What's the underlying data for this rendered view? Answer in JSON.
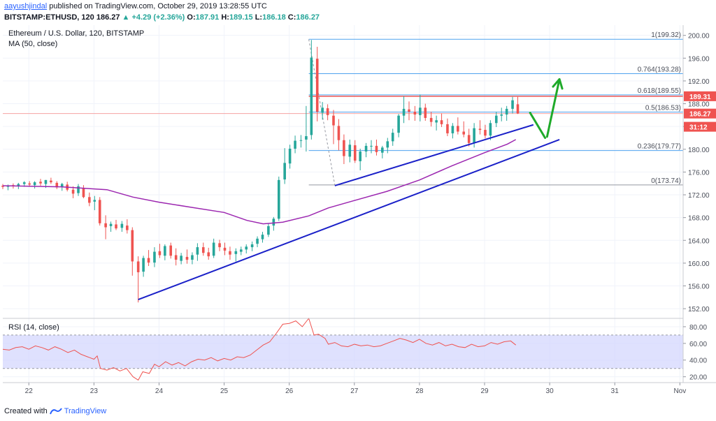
{
  "header": {
    "author": "aayushjindal",
    "published_text": "published on TradingView.com, October 29, 2019 13:28:55 UTC",
    "symbol": "BITSTAMP:ETHUSD, 120",
    "last": "186.27",
    "change": "+4.29 (+2.36%)",
    "o_label": "O:",
    "o_value": "187.91",
    "h_label": "H:",
    "h_value": "189.15",
    "l_label": "L:",
    "l_value": "186.18",
    "c_label": "C:",
    "c_value": "186.27"
  },
  "footer": {
    "created_with": "Created with",
    "brand": "TradingView"
  },
  "colors": {
    "up": "#26a69a",
    "down": "#ef5350",
    "ma": "#9c27b0",
    "trendline": "#1a20c8",
    "arrow": "#1faa2a",
    "fib": "#4fa3ef",
    "rsi": "#ef5350",
    "rsi_band": "#d1d4fd"
  },
  "chart_data": [
    {
      "type": "candlestick",
      "title": "Ethereum / U.S. Dollar, 120, BITSTAMP",
      "indicator": "MA (50, close)",
      "x_ticks": [
        "22",
        "23",
        "24",
        "25",
        "26",
        "27",
        "28",
        "29",
        "30",
        "31",
        "Nov"
      ],
      "y_ticks": [
        "152.00",
        "156.00",
        "160.00",
        "164.00",
        "168.00",
        "172.00",
        "176.00",
        "180.00",
        "184.00",
        "188.00",
        "192.00",
        "196.00",
        "200.00"
      ],
      "ylim": [
        150.3,
        201.8
      ],
      "xlim": [
        21.6,
        32.05
      ],
      "price_labels": [
        {
          "text": "189.31",
          "value": 189.31,
          "color": "#ef5350"
        },
        {
          "text": "186.27",
          "value": 186.27,
          "color": "#ef5350"
        },
        {
          "text": "31:12",
          "value": 183.95,
          "color": "#ef5350"
        }
      ],
      "candles": [
        [
          21.6,
          173.6,
          173.9,
          173.0,
          173.4
        ],
        [
          21.68,
          173.4,
          173.8,
          172.8,
          173.6
        ],
        [
          21.76,
          173.7,
          174.0,
          173.1,
          173.5
        ],
        [
          21.84,
          173.5,
          174.1,
          173.0,
          173.9
        ],
        [
          21.93,
          173.9,
          174.4,
          173.4,
          174.2
        ],
        [
          22.01,
          174.0,
          174.4,
          173.4,
          173.8
        ],
        [
          22.09,
          173.7,
          174.4,
          173.1,
          174.2
        ],
        [
          22.18,
          174.3,
          174.8,
          173.6,
          174.0
        ],
        [
          22.26,
          173.9,
          174.6,
          173.2,
          174.6
        ],
        [
          22.34,
          174.5,
          175.0,
          173.9,
          174.2
        ],
        [
          22.43,
          174.1,
          174.4,
          173.0,
          173.3
        ],
        [
          22.51,
          173.4,
          174.1,
          172.7,
          173.9
        ],
        [
          22.59,
          173.8,
          174.3,
          172.6,
          172.9
        ],
        [
          22.68,
          172.9,
          173.5,
          171.4,
          172.2
        ],
        [
          22.76,
          172.3,
          173.9,
          171.8,
          173.5
        ],
        [
          22.84,
          173.2,
          173.7,
          171.4,
          171.6
        ],
        [
          22.93,
          171.6,
          172.4,
          170.0,
          170.6
        ],
        [
          23.01,
          170.8,
          171.8,
          169.3,
          171.1
        ],
        [
          23.09,
          171.1,
          171.6,
          166.6,
          167.0
        ],
        [
          23.18,
          167.0,
          168.4,
          164.2,
          166.3
        ],
        [
          23.26,
          166.5,
          167.3,
          165.5,
          166.9
        ],
        [
          23.34,
          166.8,
          167.6,
          165.8,
          166.1
        ],
        [
          23.43,
          166.2,
          167.4,
          165.5,
          166.9
        ],
        [
          23.51,
          166.6,
          167.7,
          165.2,
          165.8
        ],
        [
          23.59,
          165.8,
          166.3,
          157.8,
          160.3
        ],
        [
          23.68,
          160.3,
          161.2,
          153.1,
          158.4
        ],
        [
          23.76,
          158.5,
          161.3,
          157.6,
          160.9
        ],
        [
          23.84,
          160.9,
          162.3,
          159.5,
          160.1
        ],
        [
          23.93,
          160.1,
          162.8,
          159.3,
          162.0
        ],
        [
          24.01,
          162.1,
          163.4,
          160.9,
          161.4
        ],
        [
          24.09,
          161.3,
          163.3,
          160.5,
          163.0
        ],
        [
          24.18,
          163.1,
          163.6,
          160.8,
          161.3
        ],
        [
          24.26,
          161.4,
          162.6,
          159.6,
          160.6
        ],
        [
          24.34,
          160.4,
          161.8,
          159.8,
          161.3
        ],
        [
          24.43,
          161.1,
          162.4,
          159.9,
          160.6
        ],
        [
          24.51,
          160.6,
          161.9,
          159.8,
          161.4
        ],
        [
          24.59,
          161.5,
          163.5,
          160.4,
          162.8
        ],
        [
          24.68,
          162.8,
          163.6,
          161.3,
          161.8
        ],
        [
          24.76,
          161.9,
          162.7,
          160.6,
          161.2
        ],
        [
          24.84,
          161.3,
          164.3,
          160.9,
          163.6
        ],
        [
          24.93,
          163.5,
          164.1,
          162.1,
          162.8
        ],
        [
          25.01,
          162.7,
          163.6,
          161.4,
          162.2
        ],
        [
          25.09,
          162.1,
          162.9,
          160.6,
          161.5
        ],
        [
          25.18,
          161.6,
          162.6,
          160.3,
          162.1
        ],
        [
          25.26,
          162.0,
          162.9,
          161.4,
          162.4
        ],
        [
          25.34,
          162.4,
          163.3,
          161.7,
          162.9
        ],
        [
          25.43,
          162.8,
          163.8,
          162.1,
          163.3
        ],
        [
          25.51,
          163.4,
          164.7,
          162.8,
          164.3
        ],
        [
          25.59,
          164.2,
          165.5,
          163.6,
          165.0
        ],
        [
          25.68,
          165.0,
          167.0,
          164.6,
          166.5
        ],
        [
          25.76,
          166.6,
          168.1,
          165.7,
          167.8
        ],
        [
          25.84,
          167.8,
          175.2,
          167.4,
          174.6
        ],
        [
          25.93,
          174.7,
          180.2,
          173.9,
          177.6
        ],
        [
          26.01,
          177.5,
          180.8,
          176.6,
          180.1
        ],
        [
          26.09,
          180.1,
          182.4,
          179.3,
          181.5
        ],
        [
          26.18,
          181.5,
          182.5,
          180.3,
          181.6
        ],
        [
          26.26,
          181.7,
          187.6,
          179.6,
          182.3
        ],
        [
          26.34,
          182.5,
          199.2,
          181.7,
          196.1
        ],
        [
          26.43,
          195.9,
          198.0,
          184.9,
          186.6
        ],
        [
          26.51,
          186.4,
          188.3,
          185.2,
          187.3
        ],
        [
          26.59,
          187.2,
          187.9,
          185.1,
          186.0
        ],
        [
          26.68,
          185.9,
          186.9,
          180.9,
          184.2
        ],
        [
          26.76,
          184.1,
          185.3,
          179.8,
          181.6
        ],
        [
          26.84,
          181.6,
          182.6,
          177.4,
          178.8
        ],
        [
          26.93,
          178.7,
          181.7,
          177.7,
          180.8
        ],
        [
          27.01,
          180.7,
          181.6,
          177.6,
          178.0
        ],
        [
          27.09,
          177.9,
          180.1,
          176.3,
          179.6
        ],
        [
          27.18,
          179.6,
          181.1,
          178.6,
          180.6
        ],
        [
          27.26,
          180.5,
          181.6,
          179.3,
          180.6
        ],
        [
          27.34,
          180.6,
          181.7,
          178.9,
          179.5
        ],
        [
          27.43,
          179.4,
          180.6,
          178.4,
          180.3
        ],
        [
          27.51,
          180.3,
          182.0,
          179.3,
          181.4
        ],
        [
          27.59,
          181.4,
          183.6,
          180.6,
          182.9
        ],
        [
          27.68,
          182.9,
          186.2,
          182.1,
          185.9
        ],
        [
          27.76,
          185.9,
          189.3,
          184.6,
          187.1
        ],
        [
          27.84,
          187.0,
          188.4,
          185.1,
          186.6
        ],
        [
          27.93,
          186.6,
          187.6,
          185.0,
          186.1
        ],
        [
          28.01,
          186.0,
          189.6,
          184.9,
          187.3
        ],
        [
          28.09,
          187.3,
          188.0,
          185.0,
          185.5
        ],
        [
          28.18,
          185.5,
          186.6,
          184.0,
          184.8
        ],
        [
          28.26,
          184.7,
          185.9,
          183.3,
          185.1
        ],
        [
          28.34,
          185.1,
          186.3,
          183.9,
          184.4
        ],
        [
          28.43,
          184.4,
          185.4,
          182.3,
          182.8
        ],
        [
          28.51,
          182.8,
          184.6,
          181.9,
          184.1
        ],
        [
          28.59,
          184.1,
          185.6,
          182.6,
          183.1
        ],
        [
          28.68,
          183.1,
          184.9,
          182.1,
          182.6
        ],
        [
          28.76,
          182.5,
          183.6,
          180.5,
          181.1
        ],
        [
          28.84,
          181.1,
          184.6,
          180.3,
          183.7
        ],
        [
          28.93,
          183.6,
          185.1,
          182.6,
          183.4
        ],
        [
          29.01,
          183.4,
          184.3,
          181.9,
          182.4
        ],
        [
          29.09,
          182.4,
          185.1,
          181.6,
          184.6
        ],
        [
          29.18,
          184.6,
          186.6,
          183.9,
          185.9
        ],
        [
          29.26,
          185.9,
          187.3,
          184.9,
          186.1
        ],
        [
          29.34,
          186.1,
          187.6,
          185.0,
          187.1
        ],
        [
          29.43,
          187.1,
          189.2,
          186.3,
          188.6
        ],
        [
          29.51,
          187.9,
          189.2,
          186.2,
          186.3
        ]
      ],
      "ma": [
        [
          21.6,
          173.6
        ],
        [
          22.5,
          173.4
        ],
        [
          23.2,
          172.9
        ],
        [
          23.6,
          171.6
        ],
        [
          24.0,
          170.7
        ],
        [
          24.5,
          169.8
        ],
        [
          25.0,
          168.9
        ],
        [
          25.35,
          167.5
        ],
        [
          25.6,
          166.9
        ],
        [
          25.9,
          167.2
        ],
        [
          26.3,
          168.3
        ],
        [
          26.6,
          169.7
        ],
        [
          27.0,
          171.0
        ],
        [
          27.5,
          172.6
        ],
        [
          28.0,
          174.6
        ],
        [
          28.5,
          177.1
        ],
        [
          29.0,
          179.4
        ],
        [
          29.35,
          180.9
        ],
        [
          29.48,
          181.7
        ]
      ],
      "trendlines": [
        {
          "x1": 23.68,
          "y1": 153.6,
          "x2": 30.15,
          "y2": 181.7
        },
        {
          "x1": 26.7,
          "y1": 173.6,
          "x2": 29.75,
          "y2": 184.3
        }
      ],
      "fib": {
        "x1": 26.3,
        "x2": 32.05,
        "levels": [
          {
            "label": "1(199.32)",
            "value": 199.32
          },
          {
            "label": "0.764(193.28)",
            "value": 193.28
          },
          {
            "label": "0.618(189.55)",
            "value": 189.55
          },
          {
            "label": "0.5(186.53)",
            "value": 186.53
          },
          {
            "label": "0.236(179.77)",
            "value": 179.77
          },
          {
            "label": "0(173.74)",
            "value": 173.74
          }
        ]
      },
      "resistance": 189.31,
      "current_price": 186.27,
      "arrows": [
        {
          "x1": 29.7,
          "y1": 186.4,
          "x2": 29.93,
          "y2": 182.0
        },
        {
          "x1": 29.96,
          "y1": 182.2,
          "x2": 30.15,
          "y2": 192.3
        }
      ]
    },
    {
      "type": "line",
      "title": "RSI (14, close)",
      "y_ticks": [
        "20.00",
        "40.00",
        "60.00",
        "80.00"
      ],
      "ylim": [
        13,
        90
      ],
      "band": [
        30,
        70
      ],
      "values": [
        [
          21.6,
          53
        ],
        [
          21.7,
          52
        ],
        [
          21.8,
          55
        ],
        [
          21.9,
          56
        ],
        [
          22.0,
          53
        ],
        [
          22.1,
          57
        ],
        [
          22.2,
          55
        ],
        [
          22.3,
          52
        ],
        [
          22.4,
          56
        ],
        [
          22.5,
          53
        ],
        [
          22.6,
          49
        ],
        [
          22.7,
          52
        ],
        [
          22.8,
          47
        ],
        [
          22.9,
          44
        ],
        [
          23.0,
          41
        ],
        [
          23.05,
          45
        ],
        [
          23.1,
          30
        ],
        [
          23.2,
          28
        ],
        [
          23.3,
          31
        ],
        [
          23.4,
          27
        ],
        [
          23.5,
          30
        ],
        [
          23.6,
          20
        ],
        [
          23.68,
          16
        ],
        [
          23.75,
          26
        ],
        [
          23.85,
          24
        ],
        [
          23.93,
          35
        ],
        [
          24.0,
          32
        ],
        [
          24.1,
          38
        ],
        [
          24.2,
          34
        ],
        [
          24.3,
          37
        ],
        [
          24.4,
          33
        ],
        [
          24.5,
          38
        ],
        [
          24.6,
          41
        ],
        [
          24.7,
          40
        ],
        [
          24.8,
          43
        ],
        [
          24.9,
          39
        ],
        [
          25.0,
          42
        ],
        [
          25.1,
          40
        ],
        [
          25.2,
          44
        ],
        [
          25.3,
          43
        ],
        [
          25.4,
          46
        ],
        [
          25.5,
          52
        ],
        [
          25.6,
          58
        ],
        [
          25.7,
          62
        ],
        [
          25.8,
          72
        ],
        [
          25.9,
          83
        ],
        [
          26.0,
          84
        ],
        [
          26.1,
          87
        ],
        [
          26.2,
          80
        ],
        [
          26.3,
          90
        ],
        [
          26.38,
          70
        ],
        [
          26.45,
          71
        ],
        [
          26.55,
          66
        ],
        [
          26.6,
          59
        ],
        [
          26.7,
          61
        ],
        [
          26.8,
          57
        ],
        [
          26.9,
          56
        ],
        [
          27.0,
          59
        ],
        [
          27.1,
          57
        ],
        [
          27.2,
          58
        ],
        [
          27.3,
          56
        ],
        [
          27.4,
          57
        ],
        [
          27.5,
          60
        ],
        [
          27.6,
          63
        ],
        [
          27.7,
          66
        ],
        [
          27.8,
          64
        ],
        [
          27.9,
          61
        ],
        [
          28.0,
          65
        ],
        [
          28.1,
          60
        ],
        [
          28.2,
          58
        ],
        [
          28.3,
          61
        ],
        [
          28.4,
          57
        ],
        [
          28.5,
          59
        ],
        [
          28.6,
          56
        ],
        [
          28.7,
          55
        ],
        [
          28.8,
          59
        ],
        [
          28.9,
          56
        ],
        [
          29.0,
          57
        ],
        [
          29.1,
          61
        ],
        [
          29.2,
          59
        ],
        [
          29.3,
          62
        ],
        [
          29.4,
          63
        ],
        [
          29.48,
          58
        ]
      ]
    }
  ]
}
